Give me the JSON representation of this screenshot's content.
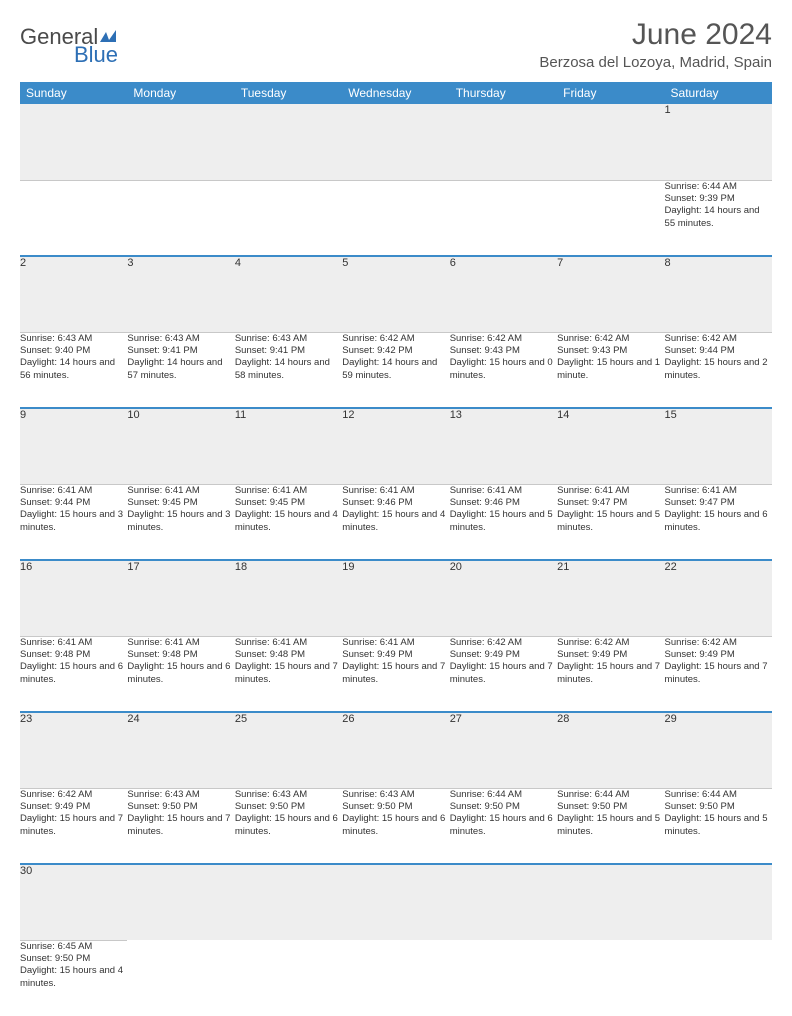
{
  "logo": {
    "general": "General",
    "blue": "Blue"
  },
  "title": "June 2024",
  "location": "Berzosa del Lozoya, Madrid, Spain",
  "colors": {
    "header_bg": "#3b8bc9",
    "daynum_bg": "#eeeeee",
    "rule": "#3b8bc9"
  },
  "day_headers": [
    "Sunday",
    "Monday",
    "Tuesday",
    "Wednesday",
    "Thursday",
    "Friday",
    "Saturday"
  ],
  "weeks": [
    [
      null,
      null,
      null,
      null,
      null,
      null,
      {
        "d": "1",
        "sr": "Sunrise: 6:44 AM",
        "ss": "Sunset: 9:39 PM",
        "dl": "Daylight: 14 hours and 55 minutes."
      }
    ],
    [
      {
        "d": "2",
        "sr": "Sunrise: 6:43 AM",
        "ss": "Sunset: 9:40 PM",
        "dl": "Daylight: 14 hours and 56 minutes."
      },
      {
        "d": "3",
        "sr": "Sunrise: 6:43 AM",
        "ss": "Sunset: 9:41 PM",
        "dl": "Daylight: 14 hours and 57 minutes."
      },
      {
        "d": "4",
        "sr": "Sunrise: 6:43 AM",
        "ss": "Sunset: 9:41 PM",
        "dl": "Daylight: 14 hours and 58 minutes."
      },
      {
        "d": "5",
        "sr": "Sunrise: 6:42 AM",
        "ss": "Sunset: 9:42 PM",
        "dl": "Daylight: 14 hours and 59 minutes."
      },
      {
        "d": "6",
        "sr": "Sunrise: 6:42 AM",
        "ss": "Sunset: 9:43 PM",
        "dl": "Daylight: 15 hours and 0 minutes."
      },
      {
        "d": "7",
        "sr": "Sunrise: 6:42 AM",
        "ss": "Sunset: 9:43 PM",
        "dl": "Daylight: 15 hours and 1 minute."
      },
      {
        "d": "8",
        "sr": "Sunrise: 6:42 AM",
        "ss": "Sunset: 9:44 PM",
        "dl": "Daylight: 15 hours and 2 minutes."
      }
    ],
    [
      {
        "d": "9",
        "sr": "Sunrise: 6:41 AM",
        "ss": "Sunset: 9:44 PM",
        "dl": "Daylight: 15 hours and 3 minutes."
      },
      {
        "d": "10",
        "sr": "Sunrise: 6:41 AM",
        "ss": "Sunset: 9:45 PM",
        "dl": "Daylight: 15 hours and 3 minutes."
      },
      {
        "d": "11",
        "sr": "Sunrise: 6:41 AM",
        "ss": "Sunset: 9:45 PM",
        "dl": "Daylight: 15 hours and 4 minutes."
      },
      {
        "d": "12",
        "sr": "Sunrise: 6:41 AM",
        "ss": "Sunset: 9:46 PM",
        "dl": "Daylight: 15 hours and 4 minutes."
      },
      {
        "d": "13",
        "sr": "Sunrise: 6:41 AM",
        "ss": "Sunset: 9:46 PM",
        "dl": "Daylight: 15 hours and 5 minutes."
      },
      {
        "d": "14",
        "sr": "Sunrise: 6:41 AM",
        "ss": "Sunset: 9:47 PM",
        "dl": "Daylight: 15 hours and 5 minutes."
      },
      {
        "d": "15",
        "sr": "Sunrise: 6:41 AM",
        "ss": "Sunset: 9:47 PM",
        "dl": "Daylight: 15 hours and 6 minutes."
      }
    ],
    [
      {
        "d": "16",
        "sr": "Sunrise: 6:41 AM",
        "ss": "Sunset: 9:48 PM",
        "dl": "Daylight: 15 hours and 6 minutes."
      },
      {
        "d": "17",
        "sr": "Sunrise: 6:41 AM",
        "ss": "Sunset: 9:48 PM",
        "dl": "Daylight: 15 hours and 6 minutes."
      },
      {
        "d": "18",
        "sr": "Sunrise: 6:41 AM",
        "ss": "Sunset: 9:48 PM",
        "dl": "Daylight: 15 hours and 7 minutes."
      },
      {
        "d": "19",
        "sr": "Sunrise: 6:41 AM",
        "ss": "Sunset: 9:49 PM",
        "dl": "Daylight: 15 hours and 7 minutes."
      },
      {
        "d": "20",
        "sr": "Sunrise: 6:42 AM",
        "ss": "Sunset: 9:49 PM",
        "dl": "Daylight: 15 hours and 7 minutes."
      },
      {
        "d": "21",
        "sr": "Sunrise: 6:42 AM",
        "ss": "Sunset: 9:49 PM",
        "dl": "Daylight: 15 hours and 7 minutes."
      },
      {
        "d": "22",
        "sr": "Sunrise: 6:42 AM",
        "ss": "Sunset: 9:49 PM",
        "dl": "Daylight: 15 hours and 7 minutes."
      }
    ],
    [
      {
        "d": "23",
        "sr": "Sunrise: 6:42 AM",
        "ss": "Sunset: 9:49 PM",
        "dl": "Daylight: 15 hours and 7 minutes."
      },
      {
        "d": "24",
        "sr": "Sunrise: 6:43 AM",
        "ss": "Sunset: 9:50 PM",
        "dl": "Daylight: 15 hours and 7 minutes."
      },
      {
        "d": "25",
        "sr": "Sunrise: 6:43 AM",
        "ss": "Sunset: 9:50 PM",
        "dl": "Daylight: 15 hours and 6 minutes."
      },
      {
        "d": "26",
        "sr": "Sunrise: 6:43 AM",
        "ss": "Sunset: 9:50 PM",
        "dl": "Daylight: 15 hours and 6 minutes."
      },
      {
        "d": "27",
        "sr": "Sunrise: 6:44 AM",
        "ss": "Sunset: 9:50 PM",
        "dl": "Daylight: 15 hours and 6 minutes."
      },
      {
        "d": "28",
        "sr": "Sunrise: 6:44 AM",
        "ss": "Sunset: 9:50 PM",
        "dl": "Daylight: 15 hours and 5 minutes."
      },
      {
        "d": "29",
        "sr": "Sunrise: 6:44 AM",
        "ss": "Sunset: 9:50 PM",
        "dl": "Daylight: 15 hours and 5 minutes."
      }
    ],
    [
      {
        "d": "30",
        "sr": "Sunrise: 6:45 AM",
        "ss": "Sunset: 9:50 PM",
        "dl": "Daylight: 15 hours and 4 minutes."
      },
      null,
      null,
      null,
      null,
      null,
      null
    ]
  ]
}
